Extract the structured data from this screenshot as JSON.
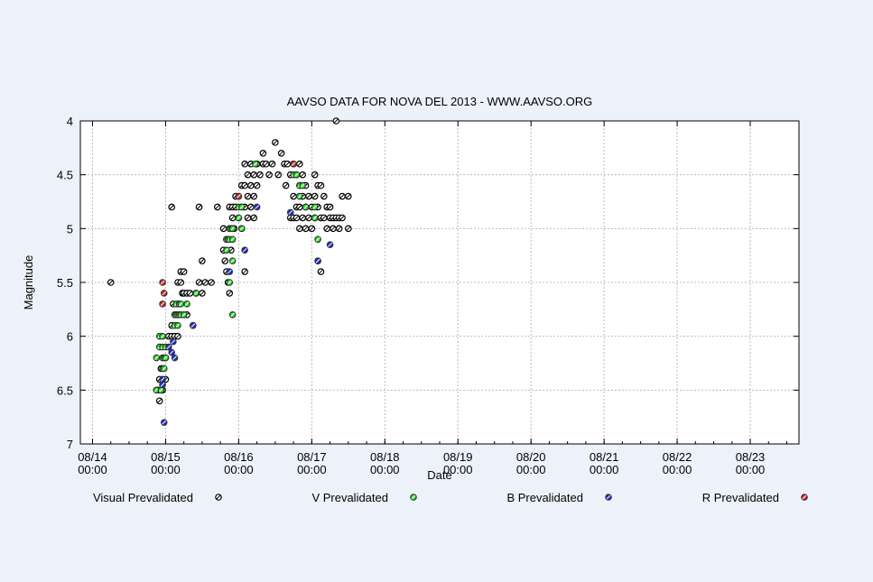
{
  "chart_data": {
    "type": "scatter",
    "title": "AAVSO DATA FOR NOVA DEL 2013 - WWW.AAVSO.ORG",
    "xlabel": "Date",
    "ylabel": "Magnitude",
    "y_inverted": true,
    "ylim": [
      4,
      7
    ],
    "y_ticks": [
      "4",
      "4.5",
      "5",
      "5.5",
      "6",
      "6.5",
      "7"
    ],
    "x_ticks": [
      {
        "date": "08/14",
        "time": "00:00"
      },
      {
        "date": "08/15",
        "time": "00:00"
      },
      {
        "date": "08/16",
        "time": "00:00"
      },
      {
        "date": "08/17",
        "time": "00:00"
      },
      {
        "date": "08/18",
        "time": "00:00"
      },
      {
        "date": "08/19",
        "time": "00:00"
      },
      {
        "date": "08/20",
        "time": "00:00"
      },
      {
        "date": "08/21",
        "time": "00:00"
      },
      {
        "date": "08/22",
        "time": "00:00"
      },
      {
        "date": "08/23",
        "time": "00:00"
      }
    ],
    "xlim": [
      "2013-08-13 20:00",
      "2013-08-23 16:00"
    ],
    "grid": true,
    "legend_position": "bottom",
    "series": [
      {
        "name": "Visual Prevalidated",
        "color": "#000000",
        "points": [
          [
            "2013-08-14 06:00",
            5.5
          ],
          [
            "2013-08-14 21:30",
            6.5
          ],
          [
            "2013-08-14 22:00",
            6.6
          ],
          [
            "2013-08-14 22:00",
            6.4
          ],
          [
            "2013-08-14 22:30",
            6.3
          ],
          [
            "2013-08-14 23:00",
            6.5
          ],
          [
            "2013-08-15 00:00",
            6.4
          ],
          [
            "2013-08-15 00:00",
            6.2
          ],
          [
            "2013-08-15 01:00",
            6.0
          ],
          [
            "2013-08-15 02:00",
            6.0
          ],
          [
            "2013-08-15 02:00",
            5.9
          ],
          [
            "2013-08-15 02:30",
            5.7
          ],
          [
            "2013-08-15 02:00",
            4.8
          ],
          [
            "2013-08-15 03:00",
            6.0
          ],
          [
            "2013-08-15 03:00",
            5.8
          ],
          [
            "2013-08-15 04:00",
            5.5
          ],
          [
            "2013-08-15 04:00",
            5.7
          ],
          [
            "2013-08-15 04:00",
            6.0
          ],
          [
            "2013-08-15 05:00",
            5.4
          ],
          [
            "2013-08-15 05:00",
            5.5
          ],
          [
            "2013-08-15 05:30",
            5.6
          ],
          [
            "2013-08-15 06:00",
            5.4
          ],
          [
            "2013-08-15 06:00",
            5.6
          ],
          [
            "2013-08-15 07:00",
            5.6
          ],
          [
            "2013-08-15 07:00",
            5.8
          ],
          [
            "2013-08-15 08:00",
            5.6
          ],
          [
            "2013-08-15 09:00",
            5.9
          ],
          [
            "2013-08-15 10:00",
            5.6
          ],
          [
            "2013-08-15 11:00",
            4.8
          ],
          [
            "2013-08-15 11:00",
            5.5
          ],
          [
            "2013-08-15 12:00",
            5.3
          ],
          [
            "2013-08-15 12:00",
            5.6
          ],
          [
            "2013-08-15 13:00",
            5.5
          ],
          [
            "2013-08-15 15:00",
            5.5
          ],
          [
            "2013-08-15 17:00",
            4.8
          ],
          [
            "2013-08-15 19:00",
            5.0
          ],
          [
            "2013-08-15 19:00",
            5.2
          ],
          [
            "2013-08-15 19:30",
            5.3
          ],
          [
            "2013-08-15 20:00",
            5.1
          ],
          [
            "2013-08-15 20:00",
            5.4
          ],
          [
            "2013-08-15 20:30",
            5.5
          ],
          [
            "2013-08-15 21:00",
            4.8
          ],
          [
            "2013-08-15 21:00",
            5.0
          ],
          [
            "2013-08-15 21:00",
            5.6
          ],
          [
            "2013-08-15 21:30",
            5.2
          ],
          [
            "2013-08-15 22:00",
            4.8
          ],
          [
            "2013-08-15 22:00",
            4.9
          ],
          [
            "2013-08-15 22:30",
            5.0
          ],
          [
            "2013-08-15 23:00",
            4.7
          ],
          [
            "2013-08-15 23:00",
            4.8
          ],
          [
            "2013-08-16 00:00",
            4.7
          ],
          [
            "2013-08-16 00:00",
            4.9
          ],
          [
            "2013-08-16 01:00",
            4.6
          ],
          [
            "2013-08-16 01:00",
            4.8
          ],
          [
            "2013-08-16 01:00",
            5.0
          ],
          [
            "2013-08-16 02:00",
            4.4
          ],
          [
            "2013-08-16 02:00",
            4.6
          ],
          [
            "2013-08-16 02:00",
            4.8
          ],
          [
            "2013-08-16 02:00",
            5.4
          ],
          [
            "2013-08-16 03:00",
            4.5
          ],
          [
            "2013-08-16 03:00",
            4.7
          ],
          [
            "2013-08-16 03:00",
            4.9
          ],
          [
            "2013-08-16 04:00",
            4.4
          ],
          [
            "2013-08-16 04:00",
            4.6
          ],
          [
            "2013-08-16 04:00",
            4.8
          ],
          [
            "2013-08-16 05:00",
            4.5
          ],
          [
            "2013-08-16 05:00",
            4.7
          ],
          [
            "2013-08-16 05:00",
            4.9
          ],
          [
            "2013-08-16 06:00",
            4.4
          ],
          [
            "2013-08-16 06:00",
            4.6
          ],
          [
            "2013-08-16 07:00",
            4.5
          ],
          [
            "2013-08-16 08:00",
            4.3
          ],
          [
            "2013-08-16 08:00",
            4.4
          ],
          [
            "2013-08-16 09:00",
            4.4
          ],
          [
            "2013-08-16 10:00",
            4.5
          ],
          [
            "2013-08-16 11:00",
            4.4
          ],
          [
            "2013-08-16 12:00",
            4.2
          ],
          [
            "2013-08-16 13:00",
            4.5
          ],
          [
            "2013-08-16 14:00",
            4.3
          ],
          [
            "2013-08-16 15:00",
            4.4
          ],
          [
            "2013-08-16 15:30",
            4.6
          ],
          [
            "2013-08-16 16:00",
            4.4
          ],
          [
            "2013-08-16 17:00",
            4.5
          ],
          [
            "2013-08-16 17:00",
            4.9
          ],
          [
            "2013-08-16 18:00",
            4.4
          ],
          [
            "2013-08-16 18:00",
            4.7
          ],
          [
            "2013-08-16 18:00",
            4.9
          ],
          [
            "2013-08-16 19:00",
            4.5
          ],
          [
            "2013-08-16 19:00",
            4.8
          ],
          [
            "2013-08-16 19:00",
            4.9
          ],
          [
            "2013-08-16 20:00",
            4.4
          ],
          [
            "2013-08-16 20:00",
            4.6
          ],
          [
            "2013-08-16 20:00",
            4.8
          ],
          [
            "2013-08-16 20:00",
            5.0
          ],
          [
            "2013-08-16 21:00",
            4.5
          ],
          [
            "2013-08-16 21:00",
            4.7
          ],
          [
            "2013-08-16 21:00",
            4.9
          ],
          [
            "2013-08-16 22:00",
            4.6
          ],
          [
            "2013-08-16 22:00",
            4.8
          ],
          [
            "2013-08-16 22:00",
            5.0
          ],
          [
            "2013-08-16 23:00",
            4.7
          ],
          [
            "2013-08-16 23:00",
            4.9
          ],
          [
            "2013-08-17 00:00",
            4.8
          ],
          [
            "2013-08-17 00:00",
            5.0
          ],
          [
            "2013-08-17 01:00",
            4.5
          ],
          [
            "2013-08-17 01:00",
            4.7
          ],
          [
            "2013-08-17 01:00",
            4.9
          ],
          [
            "2013-08-17 02:00",
            4.6
          ],
          [
            "2013-08-17 02:00",
            4.8
          ],
          [
            "2013-08-17 02:00",
            5.3
          ],
          [
            "2013-08-17 03:00",
            4.6
          ],
          [
            "2013-08-17 03:00",
            4.9
          ],
          [
            "2013-08-17 03:00",
            5.4
          ],
          [
            "2013-08-17 04:00",
            4.7
          ],
          [
            "2013-08-17 04:00",
            4.9
          ],
          [
            "2013-08-17 05:00",
            4.8
          ],
          [
            "2013-08-17 05:00",
            5.0
          ],
          [
            "2013-08-17 06:00",
            4.8
          ],
          [
            "2013-08-17 06:00",
            4.9
          ],
          [
            "2013-08-17 07:00",
            4.9
          ],
          [
            "2013-08-17 07:00",
            5.0
          ],
          [
            "2013-08-17 08:00",
            4.0
          ],
          [
            "2013-08-17 08:00",
            4.9
          ],
          [
            "2013-08-17 09:00",
            4.9
          ],
          [
            "2013-08-17 09:00",
            5.0
          ],
          [
            "2013-08-17 10:00",
            4.7
          ],
          [
            "2013-08-17 10:00",
            4.9
          ],
          [
            "2013-08-17 12:00",
            4.7
          ],
          [
            "2013-08-17 12:00",
            5.0
          ]
        ]
      },
      {
        "name": "V Prevalidated",
        "color": "#22ee22",
        "points": [
          [
            "2013-08-14 21:00",
            6.2
          ],
          [
            "2013-08-14 21:00",
            6.5
          ],
          [
            "2013-08-14 22:00",
            6.0
          ],
          [
            "2013-08-14 22:00",
            6.1
          ],
          [
            "2013-08-14 22:30",
            6.5
          ],
          [
            "2013-08-14 23:00",
            6.0
          ],
          [
            "2013-08-14 23:00",
            6.1
          ],
          [
            "2013-08-14 23:00",
            6.2
          ],
          [
            "2013-08-14 23:00",
            6.3
          ],
          [
            "2013-08-14 23:00",
            6.4
          ],
          [
            "2013-08-14 23:30",
            6.2
          ],
          [
            "2013-08-14 23:30",
            6.3
          ],
          [
            "2013-08-15 00:00",
            6.1
          ],
          [
            "2013-08-15 00:00",
            6.2
          ],
          [
            "2013-08-15 03:00",
            5.8
          ],
          [
            "2013-08-15 03:00",
            5.9
          ],
          [
            "2013-08-15 03:30",
            5.7
          ],
          [
            "2013-08-15 03:30",
            5.8
          ],
          [
            "2013-08-15 04:00",
            5.8
          ],
          [
            "2013-08-15 04:00",
            5.9
          ],
          [
            "2013-08-15 04:30",
            5.7
          ],
          [
            "2013-08-15 04:30",
            5.8
          ],
          [
            "2013-08-15 05:00",
            5.7
          ],
          [
            "2013-08-15 05:00",
            5.8
          ],
          [
            "2013-08-15 06:00",
            5.8
          ],
          [
            "2013-08-15 07:00",
            5.7
          ],
          [
            "2013-08-15 10:00",
            5.6
          ],
          [
            "2013-08-15 20:00",
            5.1
          ],
          [
            "2013-08-15 20:00",
            5.2
          ],
          [
            "2013-08-15 20:30",
            5.1
          ],
          [
            "2013-08-15 21:00",
            5.0
          ],
          [
            "2013-08-15 21:00",
            5.1
          ],
          [
            "2013-08-15 21:30",
            5.0
          ],
          [
            "2013-08-15 22:00",
            5.0
          ],
          [
            "2013-08-15 22:00",
            5.1
          ],
          [
            "2013-08-15 21:00",
            5.5
          ],
          [
            "2013-08-15 22:00",
            5.3
          ],
          [
            "2013-08-15 22:00",
            5.8
          ],
          [
            "2013-08-16 00:00",
            4.8
          ],
          [
            "2013-08-16 00:00",
            4.9
          ],
          [
            "2013-08-16 01:00",
            4.8
          ],
          [
            "2013-08-16 01:00",
            5.0
          ],
          [
            "2013-08-16 05:30",
            4.4
          ],
          [
            "2013-08-16 18:00",
            4.5
          ],
          [
            "2013-08-16 19:00",
            4.5
          ],
          [
            "2013-08-16 20:00",
            4.6
          ],
          [
            "2013-08-16 20:00",
            4.7
          ],
          [
            "2013-08-16 21:00",
            4.6
          ],
          [
            "2013-08-16 22:00",
            4.8
          ],
          [
            "2013-08-17 01:00",
            4.8
          ],
          [
            "2013-08-17 01:00",
            4.9
          ],
          [
            "2013-08-17 02:00",
            5.1
          ]
        ]
      },
      {
        "name": "B Prevalidated",
        "color": "#1a2bd8",
        "points": [
          [
            "2013-08-14 23:00",
            6.4
          ],
          [
            "2013-08-14 23:00",
            6.45
          ],
          [
            "2013-08-14 23:30",
            6.8
          ],
          [
            "2013-08-15 01:00",
            6.1
          ],
          [
            "2013-08-15 02:00",
            6.15
          ],
          [
            "2013-08-15 03:00",
            6.2
          ],
          [
            "2013-08-15 02:30",
            6.05
          ],
          [
            "2013-08-15 09:00",
            5.9
          ],
          [
            "2013-08-15 21:00",
            5.4
          ],
          [
            "2013-08-16 02:00",
            5.2
          ],
          [
            "2013-08-16 06:00",
            4.8
          ],
          [
            "2013-08-16 17:00",
            4.85
          ],
          [
            "2013-08-17 02:00",
            5.3
          ],
          [
            "2013-08-17 06:00",
            5.15
          ]
        ]
      },
      {
        "name": "R Prevalidated",
        "color": "#dd2222",
        "points": [
          [
            "2013-08-14 23:00",
            5.5
          ],
          [
            "2013-08-14 23:30",
            5.6
          ],
          [
            "2013-08-14 23:00",
            5.7
          ],
          [
            "2013-08-16 00:00",
            4.7
          ],
          [
            "2013-08-16 18:00",
            4.4
          ]
        ]
      }
    ]
  }
}
